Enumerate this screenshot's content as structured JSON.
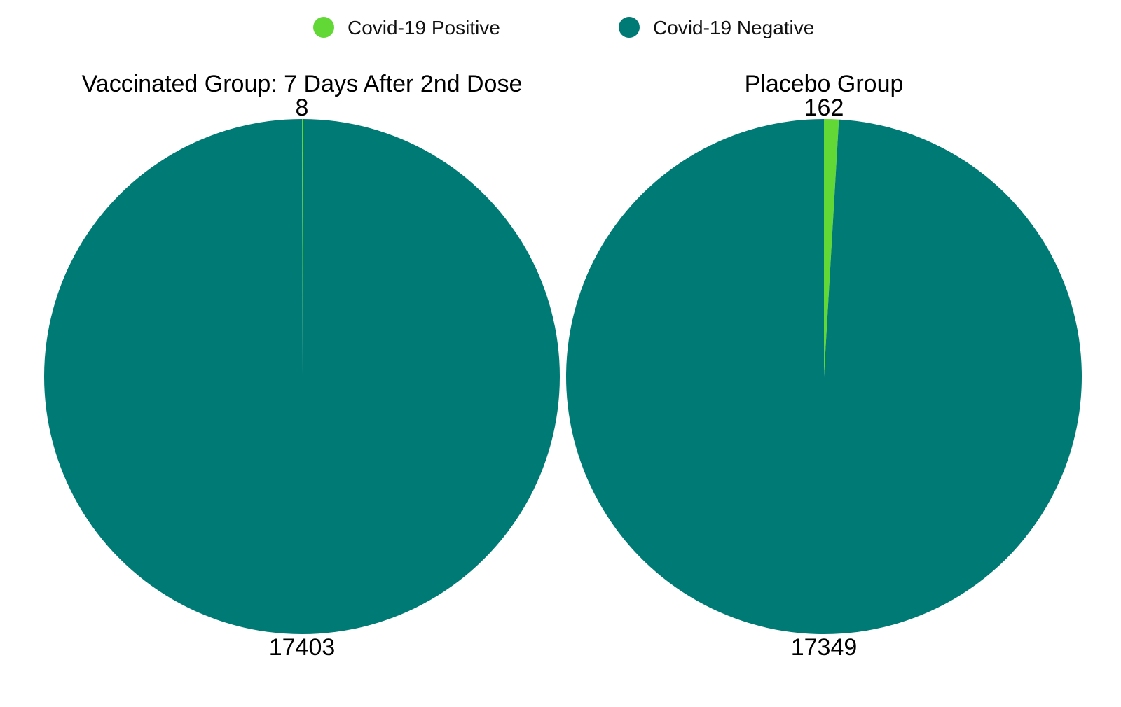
{
  "legend": [
    {
      "label": "Covid-19 Positive",
      "color": "#62d837"
    },
    {
      "label": "Covid-19 Negative",
      "color": "#007a74"
    }
  ],
  "chart_data": [
    {
      "type": "pie",
      "title": "Vaccinated Group: 7 Days After 2nd Dose",
      "categories": [
        "Covid-19 Positive",
        "Covid-19 Negative"
      ],
      "values": [
        8,
        17403
      ],
      "colors": [
        "#62d837",
        "#007a74"
      ],
      "legend_position": "top-center"
    },
    {
      "type": "pie",
      "title": "Placebo Group",
      "categories": [
        "Covid-19 Positive",
        "Covid-19 Negative"
      ],
      "values": [
        162,
        17349
      ],
      "colors": [
        "#62d837",
        "#007a74"
      ],
      "legend_position": "top-center"
    }
  ]
}
